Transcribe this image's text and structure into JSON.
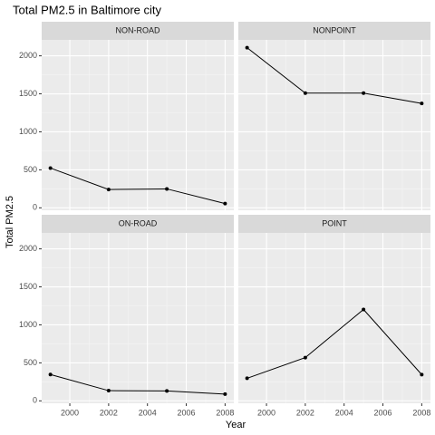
{
  "chart_data": {
    "type": "line",
    "title": "Total PM2.5 in Baltimore city",
    "xlabel": "Year",
    "ylabel": "Total PM2.5",
    "x": [
      1999,
      2002,
      2005,
      2008
    ],
    "series": [
      {
        "name": "NON-ROAD",
        "color": "#000000",
        "values": [
          522.94,
          240.85,
          248.93,
          55.82
        ]
      },
      {
        "name": "NONPOINT",
        "color": "#000000",
        "values": [
          2107.625,
          1509.5,
          1509.5,
          1373.207
        ]
      },
      {
        "name": "ON-ROAD",
        "color": "#000000",
        "values": [
          346.82,
          134.31,
          130.43,
          88.28
        ]
      },
      {
        "name": "POINT",
        "color": "#000000",
        "values": [
          296.795,
          569.26,
          1202.49,
          344.975
        ]
      }
    ],
    "xlim": [
      1998.55,
      2008.45
    ],
    "xticks": [
      2000,
      2002,
      2004,
      2006,
      2008
    ],
    "ylim": [
      -32,
      2210
    ],
    "yticks": [
      0,
      500,
      1000,
      1500,
      2000
    ],
    "grid": true
  }
}
